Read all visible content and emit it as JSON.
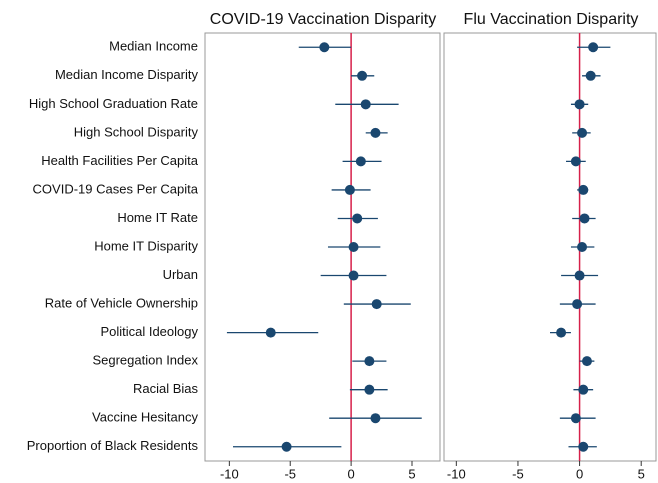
{
  "chart_data": [
    {
      "type": "coefplot",
      "title": "COVID-19 Vaccination Disparity",
      "categories": [
        "Median Income",
        "Median Income Disparity",
        "High School Graduation Rate",
        "High School Disparity",
        "Health Facilities Per Capita",
        "COVID-19 Cases Per Capita",
        "Home IT Rate",
        "Home IT Disparity",
        "Urban",
        "Rate of Vehicle Ownership",
        "Political Ideology",
        "Segregation Index",
        "Racial Bias",
        "Vaccine Hesitancy",
        "Proportion of Black Residents"
      ],
      "values": [
        -2.2,
        0.9,
        1.2,
        2.0,
        0.8,
        -0.1,
        0.5,
        0.2,
        0.2,
        2.1,
        -6.6,
        1.5,
        1.5,
        2.0,
        -5.3
      ],
      "ci_low": [
        -4.3,
        0.0,
        -1.3,
        1.2,
        -0.7,
        -1.6,
        -1.1,
        -1.9,
        -2.5,
        -0.6,
        -10.2,
        0.1,
        -0.1,
        -1.8,
        -9.7
      ],
      "ci_high": [
        0.0,
        1.9,
        3.9,
        3.0,
        2.5,
        1.6,
        2.2,
        2.4,
        2.9,
        4.9,
        -2.7,
        2.9,
        3.0,
        5.8,
        -0.8
      ],
      "color": "#1a476f",
      "refline": 0,
      "refline_color": "#d6204a",
      "xlim": [
        -12,
        7.3
      ],
      "xticks": [
        -10,
        -5,
        0,
        5
      ]
    },
    {
      "type": "coefplot",
      "title": "Flu Vaccination Disparity",
      "values": [
        1.1,
        0.9,
        0.0,
        0.2,
        -0.3,
        0.3,
        0.4,
        0.2,
        0.0,
        -0.2,
        -1.5,
        0.6,
        0.3,
        -0.3,
        0.3
      ],
      "ci_low": [
        -0.2,
        0.2,
        -0.7,
        -0.6,
        -1.1,
        -0.2,
        -0.6,
        -0.7,
        -1.5,
        -1.6,
        -2.4,
        0.0,
        -0.5,
        -1.6,
        -0.9
      ],
      "ci_high": [
        2.5,
        1.7,
        0.7,
        0.9,
        0.5,
        0.7,
        1.3,
        1.2,
        1.5,
        1.3,
        -0.7,
        1.2,
        1.1,
        1.3,
        1.4
      ],
      "color": "#1a476f",
      "refline": 0,
      "refline_color": "#d6204a",
      "xlim": [
        -11,
        6.2
      ],
      "xticks": [
        -10,
        -5,
        0,
        5
      ]
    }
  ]
}
